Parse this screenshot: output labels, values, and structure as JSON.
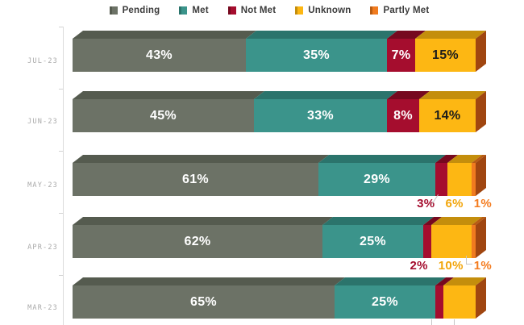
{
  "legend": {
    "items": [
      {
        "label": "Pending",
        "color": "#6c7266",
        "edge": "#555b4f"
      },
      {
        "label": "Met",
        "color": "#3b948b",
        "edge": "#2b746c"
      },
      {
        "label": "Not Met",
        "color": "#a50d2e",
        "edge": "#76091f"
      },
      {
        "label": "Unknown",
        "color": "#fdb713",
        "edge": "#c48e0c"
      },
      {
        "label": "Partly Met",
        "color": "#f07b1f",
        "edge": "#b85c12"
      }
    ]
  },
  "chart_data": {
    "type": "bar",
    "subtype": "horizontal-stacked-3d",
    "unit": "%",
    "title": "",
    "legend_position": "top",
    "xlim": [
      0,
      100
    ],
    "categories": [
      "JUL-23",
      "JUN-23",
      "MAY-23",
      "APR-23",
      "MAR-23"
    ],
    "series": [
      {
        "name": "Pending",
        "values": [
          43,
          45,
          61,
          62,
          65
        ]
      },
      {
        "name": "Met",
        "values": [
          35,
          33,
          29,
          25,
          25
        ]
      },
      {
        "name": "Not Met",
        "values": [
          7,
          8,
          3,
          2,
          2
        ]
      },
      {
        "name": "Unknown",
        "values": [
          15,
          14,
          6,
          10,
          8
        ]
      },
      {
        "name": "Partly Met",
        "values": [
          0,
          0,
          1,
          1,
          0
        ]
      }
    ],
    "palette": {
      "Pending": {
        "face": "#6c7266",
        "top": "#555b4f",
        "text": "#ffffff",
        "label_color": "#6c7266"
      },
      "Met": {
        "face": "#3b948b",
        "top": "#2b746c",
        "text": "#ffffff",
        "label_color": "#3b948b"
      },
      "Not Met": {
        "face": "#a50d2e",
        "top": "#76091f",
        "text": "#ffffff",
        "label_color": "#a50d2e"
      },
      "Unknown": {
        "face": "#fdb713",
        "top": "#c48e0c",
        "text": "#1d1d1b",
        "label_color": "#f2a50a"
      },
      "Partly Met": {
        "face": "#f07b1f",
        "top": "#b85c12",
        "text": "#ffffff",
        "label_color": "#f47c20"
      }
    },
    "side_color": "#a04610",
    "rows": [
      {
        "category": "JUL-23",
        "segments": [
          {
            "series": "Pending",
            "value": 43,
            "label": "43%",
            "placement": "inside"
          },
          {
            "series": "Met",
            "value": 35,
            "label": "35%",
            "placement": "inside"
          },
          {
            "series": "Not Met",
            "value": 7,
            "label": "7%",
            "placement": "inside"
          },
          {
            "series": "Unknown",
            "value": 15,
            "label": "15%",
            "placement": "inside"
          }
        ]
      },
      {
        "category": "JUN-23",
        "segments": [
          {
            "series": "Pending",
            "value": 45,
            "label": "45%",
            "placement": "inside"
          },
          {
            "series": "Met",
            "value": 33,
            "label": "33%",
            "placement": "inside"
          },
          {
            "series": "Not Met",
            "value": 8,
            "label": "8%",
            "placement": "inside"
          },
          {
            "series": "Unknown",
            "value": 14,
            "label": "14%",
            "placement": "inside"
          }
        ]
      },
      {
        "category": "MAY-23",
        "segments": [
          {
            "series": "Pending",
            "value": 61,
            "label": "61%",
            "placement": "inside"
          },
          {
            "series": "Met",
            "value": 29,
            "label": "29%",
            "placement": "inside"
          },
          {
            "series": "Not Met",
            "value": 3,
            "label": "3%",
            "placement": "below"
          },
          {
            "series": "Unknown",
            "value": 6,
            "label": "6%",
            "placement": "below"
          },
          {
            "series": "Partly Met",
            "value": 1,
            "label": "1%",
            "placement": "below"
          }
        ]
      },
      {
        "category": "APR-23",
        "segments": [
          {
            "series": "Pending",
            "value": 62,
            "label": "62%",
            "placement": "inside"
          },
          {
            "series": "Met",
            "value": 25,
            "label": "25%",
            "placement": "inside"
          },
          {
            "series": "Not Met",
            "value": 2,
            "label": "2%",
            "placement": "below"
          },
          {
            "series": "Unknown",
            "value": 10,
            "label": "10%",
            "placement": "below"
          },
          {
            "series": "Partly Met",
            "value": 1,
            "label": "1%",
            "placement": "below"
          }
        ]
      },
      {
        "category": "MAR-23",
        "segments": [
          {
            "series": "Pending",
            "value": 65,
            "label": "65%",
            "placement": "inside"
          },
          {
            "series": "Met",
            "value": 25,
            "label": "25%",
            "placement": "inside"
          },
          {
            "series": "Not Met",
            "value": 2,
            "label": "",
            "placement": "none"
          },
          {
            "series": "Unknown",
            "value": 8,
            "label": "",
            "placement": "none"
          }
        ]
      }
    ]
  }
}
